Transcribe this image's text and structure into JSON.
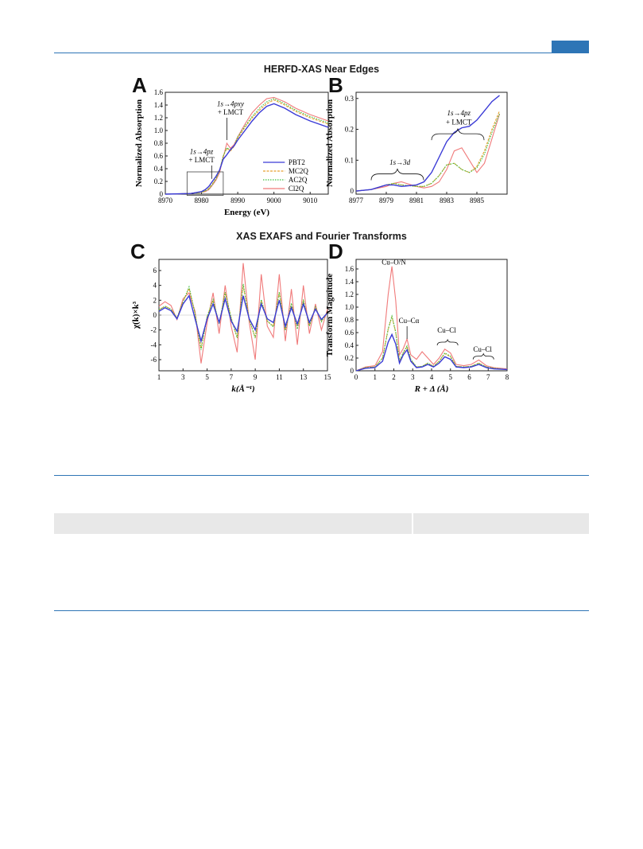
{
  "section_titles": {
    "near_edges": "HERFD-XAS Near Edges",
    "exafs": "XAS EXAFS and Fourier Transforms"
  },
  "panels": {
    "a": "A",
    "b": "B",
    "c": "C",
    "d": "D"
  },
  "colors": {
    "PBT2": "#3a3ad6",
    "MC2Q": "#e8a030",
    "AC2Q": "#3fbf3f",
    "Cl2Q": "#f07a7a",
    "accent": "#2e75b6"
  },
  "chart_data": [
    {
      "panel": "A",
      "type": "line",
      "xlabel": "Energy (eV)",
      "ylabel": "Normalized Absorption",
      "xlim": [
        8970,
        9015
      ],
      "ylim": [
        0,
        1.6
      ],
      "xticks": [
        8970,
        8980,
        8990,
        9000,
        9010
      ],
      "yticks": [
        0,
        0.2,
        0.4,
        0.6,
        0.8,
        1.0,
        1.2,
        1.4,
        1.6
      ],
      "annotations": [
        "1s→4pxy + LMCT",
        "1s→4pz + LMCT"
      ],
      "legend": "bottom-right",
      "series": [
        {
          "name": "PBT2",
          "x": [
            8970,
            8977,
            8978,
            8979,
            8980,
            8981,
            8982,
            8983,
            8984,
            8985,
            8986,
            8987,
            8988,
            8989,
            8990,
            8992,
            8994,
            8996,
            8998,
            9000,
            9003,
            9006,
            9010,
            9015
          ],
          "y": [
            0,
            0.01,
            0.02,
            0.03,
            0.04,
            0.07,
            0.12,
            0.2,
            0.28,
            0.38,
            0.55,
            0.62,
            0.7,
            0.76,
            0.85,
            1.0,
            1.15,
            1.28,
            1.38,
            1.42,
            1.35,
            1.25,
            1.15,
            1.05
          ]
        },
        {
          "name": "MC2Q",
          "x": [
            8970,
            8977,
            8978,
            8979,
            8980,
            8981,
            8982,
            8983,
            8984,
            8985,
            8986,
            8987,
            8988,
            8989,
            8990,
            8992,
            8994,
            8996,
            8998,
            9000,
            9003,
            9006,
            9010,
            9015
          ],
          "y": [
            0,
            0.01,
            0.02,
            0.02,
            0.03,
            0.05,
            0.09,
            0.16,
            0.25,
            0.38,
            0.6,
            0.72,
            0.68,
            0.75,
            0.88,
            1.05,
            1.2,
            1.32,
            1.42,
            1.48,
            1.4,
            1.3,
            1.2,
            1.1
          ]
        },
        {
          "name": "AC2Q",
          "x": [
            8970,
            8977,
            8978,
            8979,
            8980,
            8981,
            8982,
            8983,
            8984,
            8985,
            8986,
            8987,
            8988,
            8989,
            8990,
            8992,
            8994,
            8996,
            8998,
            9000,
            9003,
            9006,
            9010,
            9015
          ],
          "y": [
            0,
            0.01,
            0.02,
            0.02,
            0.03,
            0.05,
            0.08,
            0.15,
            0.24,
            0.37,
            0.6,
            0.73,
            0.69,
            0.76,
            0.9,
            1.07,
            1.22,
            1.35,
            1.45,
            1.5,
            1.42,
            1.32,
            1.22,
            1.12
          ]
        },
        {
          "name": "Cl2Q",
          "x": [
            8970,
            8977,
            8978,
            8979,
            8980,
            8981,
            8982,
            8983,
            8984,
            8985,
            8986,
            8987,
            8988,
            8989,
            8990,
            8992,
            8994,
            8996,
            8998,
            9000,
            9003,
            9006,
            9010,
            9015
          ],
          "y": [
            0,
            0.01,
            0.02,
            0.02,
            0.03,
            0.04,
            0.07,
            0.14,
            0.22,
            0.34,
            0.58,
            0.8,
            0.72,
            0.78,
            0.9,
            1.1,
            1.28,
            1.4,
            1.5,
            1.52,
            1.45,
            1.35,
            1.25,
            1.15
          ]
        }
      ]
    },
    {
      "panel": "B",
      "type": "line",
      "xlabel": "",
      "ylabel": "Normalized Absorption",
      "xlim": [
        8977,
        8987
      ],
      "ylim": [
        -0.01,
        0.32
      ],
      "xticks": [
        8977,
        8979,
        8981,
        8983,
        8985
      ],
      "yticks": [
        0,
        0.1,
        0.2,
        0.3
      ],
      "annotations": [
        "1s→3d",
        "1s→4pz + LMCT"
      ],
      "series": [
        {
          "name": "PBT2",
          "x": [
            8977,
            8978,
            8979,
            8979.5,
            8980,
            8981,
            8981.5,
            8982,
            8982.5,
            8983,
            8983.5,
            8984,
            8984.5,
            8985,
            8985.5,
            8986,
            8986.5
          ],
          "y": [
            0.0,
            0.005,
            0.02,
            0.02,
            0.015,
            0.02,
            0.03,
            0.06,
            0.11,
            0.16,
            0.19,
            0.205,
            0.21,
            0.23,
            0.26,
            0.29,
            0.31
          ]
        },
        {
          "name": "MC2Q",
          "x": [
            8977,
            8978,
            8979,
            8979.5,
            8980,
            8981,
            8981.5,
            8982,
            8982.5,
            8983,
            8983.5,
            8984,
            8984.5,
            8985,
            8985.5,
            8986,
            8986.5
          ],
          "y": [
            0.0,
            0.005,
            0.02,
            0.025,
            0.02,
            0.015,
            0.015,
            0.025,
            0.05,
            0.085,
            0.09,
            0.07,
            0.06,
            0.08,
            0.13,
            0.2,
            0.26
          ]
        },
        {
          "name": "AC2Q",
          "x": [
            8977,
            8978,
            8979,
            8979.5,
            8980,
            8981,
            8981.5,
            8982,
            8982.5,
            8983,
            8983.5,
            8984,
            8984.5,
            8985,
            8985.5,
            8986,
            8986.5
          ],
          "y": [
            0.0,
            0.005,
            0.02,
            0.025,
            0.02,
            0.015,
            0.015,
            0.025,
            0.05,
            0.085,
            0.09,
            0.07,
            0.06,
            0.075,
            0.12,
            0.19,
            0.25
          ]
        },
        {
          "name": "Cl2Q",
          "x": [
            8977,
            8978,
            8979,
            8979.5,
            8980,
            8981,
            8981.5,
            8982,
            8982.5,
            8983,
            8983.5,
            8984,
            8984.5,
            8985,
            8985.5,
            8986,
            8986.5
          ],
          "y": [
            0.0,
            0.005,
            0.015,
            0.025,
            0.03,
            0.015,
            0.01,
            0.015,
            0.03,
            0.07,
            0.13,
            0.14,
            0.1,
            0.06,
            0.09,
            0.17,
            0.25
          ]
        }
      ]
    },
    {
      "panel": "C",
      "type": "line",
      "xlabel": "k(Å⁻¹)",
      "ylabel": "χ(k)×k³",
      "xlim": [
        1,
        15
      ],
      "ylim": [
        -7.5,
        7.5
      ],
      "xticks": [
        1,
        3,
        5,
        7,
        9,
        11,
        13,
        15
      ],
      "yticks": [
        -6,
        -4,
        -2,
        0,
        2,
        4,
        6
      ],
      "series": [
        {
          "name": "PBT2",
          "x": [
            1,
            1.5,
            2,
            2.5,
            3,
            3.5,
            4,
            4.5,
            5,
            5.5,
            6,
            6.5,
            7,
            7.5,
            8,
            8.5,
            9,
            9.5,
            10,
            10.5,
            11,
            11.5,
            12,
            12.5,
            13,
            13.5,
            14,
            14.5,
            15
          ],
          "y": [
            0.5,
            1.0,
            0.6,
            -0.5,
            1.5,
            2.6,
            -0.5,
            -3.5,
            -0.5,
            1.5,
            -1.0,
            2.2,
            -0.8,
            -2.2,
            2.6,
            -0.5,
            -2.0,
            1.5,
            -0.5,
            -1.0,
            2.0,
            -1.5,
            1.0,
            -1.2,
            1.5,
            -1.0,
            0.8,
            -0.6,
            0.3
          ]
        },
        {
          "name": "MC2Q",
          "x": [
            1,
            1.5,
            2,
            2.5,
            3,
            3.5,
            4,
            4.5,
            5,
            5.5,
            6,
            6.5,
            7,
            7.5,
            8,
            8.5,
            9,
            9.5,
            10,
            10.5,
            11,
            11.5,
            12,
            12.5,
            13,
            13.5,
            14,
            14.5,
            15
          ],
          "y": [
            0.7,
            1.2,
            0.8,
            -0.4,
            1.8,
            3.6,
            0.2,
            -4.5,
            -0.2,
            2.0,
            -1.2,
            3.0,
            -0.4,
            -3.0,
            4.0,
            -0.6,
            -3.0,
            2.0,
            -0.8,
            -1.5,
            3.0,
            -2.0,
            1.5,
            -1.8,
            2.0,
            -1.4,
            1.0,
            -0.8,
            0.4
          ]
        },
        {
          "name": "AC2Q",
          "x": [
            1,
            1.5,
            2,
            2.5,
            3,
            3.5,
            4,
            4.5,
            5,
            5.5,
            6,
            6.5,
            7,
            7.5,
            8,
            8.5,
            9,
            9.5,
            10,
            10.5,
            11,
            11.5,
            12,
            12.5,
            13,
            13.5,
            14,
            14.5,
            15
          ],
          "y": [
            0.7,
            1.2,
            0.8,
            -0.4,
            1.8,
            3.8,
            0.2,
            -4.7,
            -0.2,
            2.1,
            -1.2,
            3.1,
            -0.4,
            -3.1,
            4.2,
            -0.6,
            -3.1,
            2.1,
            -0.8,
            -1.6,
            3.1,
            -2.1,
            1.6,
            -1.9,
            2.1,
            -1.5,
            1.1,
            -0.9,
            0.4
          ]
        },
        {
          "name": "Cl2Q",
          "x": [
            1,
            1.5,
            2,
            2.5,
            3,
            3.5,
            4,
            4.5,
            5,
            5.5,
            6,
            6.5,
            7,
            7.5,
            8,
            8.5,
            9,
            9.5,
            10,
            10.5,
            11,
            11.5,
            12,
            12.5,
            13,
            13.5,
            14,
            14.5,
            15
          ],
          "y": [
            1.2,
            1.8,
            1.3,
            -0.6,
            2.2,
            3.0,
            0.5,
            -6.5,
            -1.0,
            3.0,
            -2.5,
            4.0,
            -1.5,
            -5.0,
            7.0,
            -1.0,
            -6.0,
            5.5,
            -1.5,
            -3.0,
            5.5,
            -3.5,
            3.5,
            -4.0,
            4.0,
            -2.5,
            1.5,
            -2.0,
            0.8
          ]
        }
      ]
    },
    {
      "panel": "D",
      "type": "line",
      "xlabel": "R + Δ (Å)",
      "ylabel": "Transform Magnitude",
      "xlim": [
        0,
        8
      ],
      "ylim": [
        0,
        1.75
      ],
      "xticks": [
        0,
        1,
        2,
        3,
        4,
        5,
        6,
        7,
        8
      ],
      "yticks": [
        0,
        0.2,
        0.4,
        0.6,
        0.8,
        1.0,
        1.2,
        1.4,
        1.6
      ],
      "annotations": [
        "Cu–O/N",
        "Cu–Cα",
        "Cu–Cl",
        "Cu–Cl"
      ],
      "series": [
        {
          "name": "PBT2",
          "x": [
            0,
            0.5,
            1,
            1.4,
            1.7,
            1.9,
            2.1,
            2.3,
            2.5,
            2.7,
            2.9,
            3.2,
            3.5,
            3.8,
            4.1,
            4.4,
            4.7,
            5.0,
            5.3,
            5.7,
            6.1,
            6.5,
            6.9,
            7.3,
            8
          ],
          "y": [
            0,
            0.04,
            0.05,
            0.15,
            0.45,
            0.57,
            0.42,
            0.12,
            0.25,
            0.33,
            0.15,
            0.05,
            0.06,
            0.1,
            0.06,
            0.12,
            0.22,
            0.18,
            0.06,
            0.05,
            0.06,
            0.1,
            0.05,
            0.03,
            0.02
          ]
        },
        {
          "name": "MC2Q",
          "x": [
            0,
            0.5,
            1,
            1.4,
            1.7,
            1.9,
            2.1,
            2.3,
            2.5,
            2.7,
            2.9,
            3.2,
            3.5,
            3.8,
            4.1,
            4.4,
            4.7,
            5.0,
            5.3,
            5.7,
            6.1,
            6.5,
            6.9,
            7.3,
            8
          ],
          "y": [
            0,
            0.05,
            0.06,
            0.2,
            0.65,
            0.85,
            0.6,
            0.15,
            0.28,
            0.38,
            0.17,
            0.06,
            0.07,
            0.12,
            0.07,
            0.15,
            0.27,
            0.22,
            0.07,
            0.06,
            0.07,
            0.12,
            0.06,
            0.04,
            0.02
          ]
        },
        {
          "name": "AC2Q",
          "x": [
            0,
            0.5,
            1,
            1.4,
            1.7,
            1.9,
            2.1,
            2.3,
            2.5,
            2.7,
            2.9,
            3.2,
            3.5,
            3.8,
            4.1,
            4.4,
            4.7,
            5.0,
            5.3,
            5.7,
            6.1,
            6.5,
            6.9,
            7.3,
            8
          ],
          "y": [
            0,
            0.05,
            0.06,
            0.2,
            0.66,
            0.86,
            0.61,
            0.15,
            0.29,
            0.39,
            0.18,
            0.06,
            0.07,
            0.12,
            0.07,
            0.15,
            0.28,
            0.23,
            0.07,
            0.06,
            0.07,
            0.12,
            0.06,
            0.04,
            0.02
          ]
        },
        {
          "name": "Cl2Q",
          "x": [
            0,
            0.5,
            1,
            1.4,
            1.7,
            1.9,
            2.1,
            2.3,
            2.5,
            2.7,
            2.9,
            3.2,
            3.5,
            3.8,
            4.1,
            4.4,
            4.7,
            5.0,
            5.3,
            5.7,
            6.1,
            6.5,
            6.9,
            7.3,
            8
          ],
          "y": [
            0,
            0.06,
            0.08,
            0.3,
            1.2,
            1.64,
            1.1,
            0.25,
            0.35,
            0.5,
            0.25,
            0.18,
            0.3,
            0.2,
            0.1,
            0.2,
            0.34,
            0.28,
            0.1,
            0.08,
            0.1,
            0.17,
            0.08,
            0.05,
            0.03
          ]
        }
      ]
    }
  ]
}
